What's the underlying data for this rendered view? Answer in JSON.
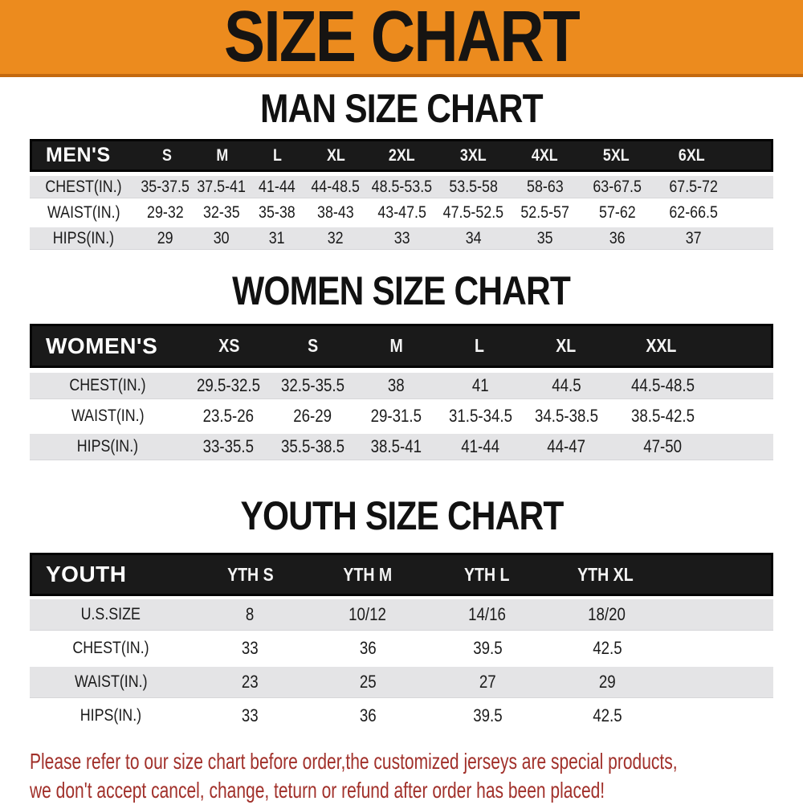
{
  "banner": {
    "title": "SIZE CHART",
    "bg_color": "#EC8B1E",
    "edge_color": "#C3690F",
    "text_color": "#161412"
  },
  "sections": [
    {
      "id": "men",
      "title": "MAN SIZE CHART",
      "table": {
        "header_label": "MEN'S",
        "columns": [
          "S",
          "M",
          "L",
          "XL",
          "2XL",
          "3XL",
          "4XL",
          "5XL",
          "6XL"
        ],
        "rows": [
          {
            "label": "CHEST(IN.)",
            "values": [
              "35-37.5",
              "37.5-41",
              "41-44",
              "44-48.5",
              "48.5-53.5",
              "53.5-58",
              "58-63",
              "63-67.5",
              "67.5-72"
            ]
          },
          {
            "label": "WAIST(IN.)",
            "values": [
              "29-32",
              "32-35",
              "35-38",
              "38-43",
              "43-47.5",
              "47.5-52.5",
              "52.5-57",
              "57-62",
              "62-66.5"
            ]
          },
          {
            "label": "HIPS(IN.)",
            "values": [
              "29",
              "30",
              "31",
              "32",
              "33",
              "34",
              "35",
              "36",
              "37"
            ]
          }
        ]
      }
    },
    {
      "id": "women",
      "title": "WOMEN SIZE CHART",
      "table": {
        "header_label": "WOMEN'S",
        "columns": [
          "XS",
          "S",
          "M",
          "L",
          "XL",
          "XXL"
        ],
        "rows": [
          {
            "label": "CHEST(IN.)",
            "values": [
              "29.5-32.5",
              "32.5-35.5",
              "38",
              "41",
              "44.5",
              "44.5-48.5"
            ]
          },
          {
            "label": "WAIST(IN.)",
            "values": [
              "23.5-26",
              "26-29",
              "29-31.5",
              "31.5-34.5",
              "34.5-38.5",
              "38.5-42.5"
            ]
          },
          {
            "label": "HIPS(IN.)",
            "values": [
              "33-35.5",
              "35.5-38.5",
              "38.5-41",
              "41-44",
              "44-47",
              "47-50"
            ]
          }
        ]
      }
    },
    {
      "id": "youth",
      "title": "YOUTH SIZE CHART",
      "table": {
        "header_label": "YOUTH",
        "columns": [
          "YTH S",
          "YTH M",
          "YTH L",
          "YTH XL"
        ],
        "rows": [
          {
            "label": "U.S.SIZE",
            "values": [
              "8",
              "10/12",
              "14/16",
              "18/20"
            ]
          },
          {
            "label": "CHEST(IN.)",
            "values": [
              "33",
              "36",
              "39.5",
              "42.5"
            ]
          },
          {
            "label": "WAIST(IN.)",
            "values": [
              "23",
              "25",
              "27",
              "29"
            ]
          },
          {
            "label": "HIPS(IN.)",
            "values": [
              "33",
              "36",
              "39.5",
              "42.5"
            ]
          }
        ]
      }
    }
  ],
  "table_style": {
    "header_bar_color": "#1a1a1a",
    "stripe_row_color": "#e4e4e6",
    "header_text_color": "#ffffff",
    "cell_text_color": "#1b1b1b"
  },
  "footer": {
    "line1": "Please refer to our size chart before order,the customized jerseys are special products,",
    "line2": "we don't accept cancel, change, teturn or refund after order has been placed!",
    "color": "#A1302A"
  }
}
